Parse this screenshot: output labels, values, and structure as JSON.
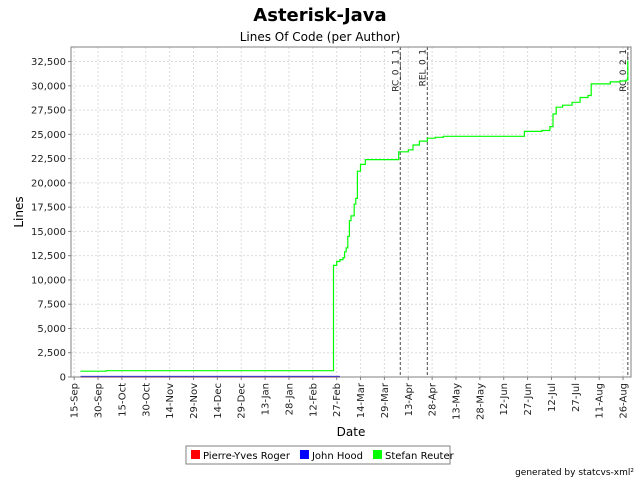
{
  "chart_data": {
    "type": "line",
    "title": "Asterisk-Java",
    "subtitle": "Lines Of Code (per Author)",
    "xlabel": "Date",
    "ylabel": "Lines",
    "x_range": [
      "2004-09-13",
      "2005-08-31"
    ],
    "ylim": [
      0,
      34000
    ],
    "y_ticks": [
      0,
      2500,
      5000,
      7500,
      10000,
      12500,
      15000,
      17500,
      20000,
      22500,
      25000,
      27500,
      30000,
      32500
    ],
    "y_tick_labels": [
      "0",
      "2,500",
      "5,000",
      "7,500",
      "10,000",
      "12,500",
      "15,000",
      "17,500",
      "20,000",
      "22,500",
      "25,000",
      "27,500",
      "30,000",
      "32,500"
    ],
    "x_ticks": [
      "2004-09-15",
      "2004-09-30",
      "2004-10-15",
      "2004-10-30",
      "2004-11-14",
      "2004-11-29",
      "2004-12-14",
      "2004-12-29",
      "2005-01-13",
      "2005-01-28",
      "2005-02-12",
      "2005-02-27",
      "2005-03-14",
      "2005-03-29",
      "2005-04-13",
      "2005-04-28",
      "2005-05-13",
      "2005-05-28",
      "2005-06-12",
      "2005-06-27",
      "2005-07-12",
      "2005-07-27",
      "2005-08-11",
      "2005-08-26"
    ],
    "x_tick_labels": [
      "15-Sep",
      "30-Sep",
      "15-Oct",
      "30-Oct",
      "14-Nov",
      "29-Nov",
      "14-Dec",
      "29-Dec",
      "13-Jan",
      "28-Jan",
      "12-Feb",
      "27-Feb",
      "14-Mar",
      "29-Mar",
      "13-Apr",
      "28-Apr",
      "13-May",
      "28-May",
      "12-Jun",
      "27-Jun",
      "12-Jul",
      "27-Jul",
      "11-Aug",
      "26-Aug"
    ],
    "grid": true,
    "legend_position": "bottom",
    "markers": [
      {
        "label": "RC_0_1_1",
        "date": "2005-04-08"
      },
      {
        "label": "REL_0_1",
        "date": "2005-04-25"
      },
      {
        "label": "RC_0_2_1",
        "date": "2005-08-29"
      }
    ],
    "series": [
      {
        "name": "Pierre-Yves Roger",
        "color": "#ff0000",
        "points": [
          [
            "2004-09-19",
            0
          ],
          [
            "2005-03-01",
            0
          ]
        ]
      },
      {
        "name": "John Hood",
        "color": "#0000ff",
        "points": [
          [
            "2004-09-19",
            50
          ],
          [
            "2005-03-01",
            50
          ]
        ]
      },
      {
        "name": "Stefan Reuter",
        "color": "#00ff00",
        "points": [
          [
            "2004-09-19",
            600
          ],
          [
            "2004-10-05",
            600
          ],
          [
            "2004-10-05",
            650
          ],
          [
            "2005-02-25",
            650
          ],
          [
            "2005-02-25",
            11500
          ],
          [
            "2005-02-27",
            11900
          ],
          [
            "2005-03-01",
            12100
          ],
          [
            "2005-03-03",
            12300
          ],
          [
            "2005-03-04",
            12900
          ],
          [
            "2005-03-05",
            13300
          ],
          [
            "2005-03-06",
            14500
          ],
          [
            "2005-03-07",
            16100
          ],
          [
            "2005-03-08",
            16600
          ],
          [
            "2005-03-10",
            17800
          ],
          [
            "2005-03-11",
            18400
          ],
          [
            "2005-03-12",
            21200
          ],
          [
            "2005-03-14",
            21900
          ],
          [
            "2005-03-17",
            22400
          ],
          [
            "2005-04-05",
            22400
          ],
          [
            "2005-04-07",
            23200
          ],
          [
            "2005-04-13",
            23400
          ],
          [
            "2005-04-16",
            23900
          ],
          [
            "2005-04-20",
            24300
          ],
          [
            "2005-04-25",
            24600
          ],
          [
            "2005-04-30",
            24700
          ],
          [
            "2005-05-05",
            24800
          ],
          [
            "2005-06-24",
            24800
          ],
          [
            "2005-06-25",
            25300
          ],
          [
            "2005-07-06",
            25400
          ],
          [
            "2005-07-11",
            25800
          ],
          [
            "2005-07-13",
            27100
          ],
          [
            "2005-07-15",
            27800
          ],
          [
            "2005-07-19",
            28000
          ],
          [
            "2005-07-25",
            28300
          ],
          [
            "2005-07-30",
            28800
          ],
          [
            "2005-08-04",
            29000
          ],
          [
            "2005-08-06",
            30200
          ],
          [
            "2005-08-18",
            30400
          ],
          [
            "2005-08-24",
            30500
          ],
          [
            "2005-08-28",
            30600
          ],
          [
            "2005-08-29",
            32600
          ]
        ]
      }
    ]
  },
  "footer": "generated by statcvs-xml²"
}
